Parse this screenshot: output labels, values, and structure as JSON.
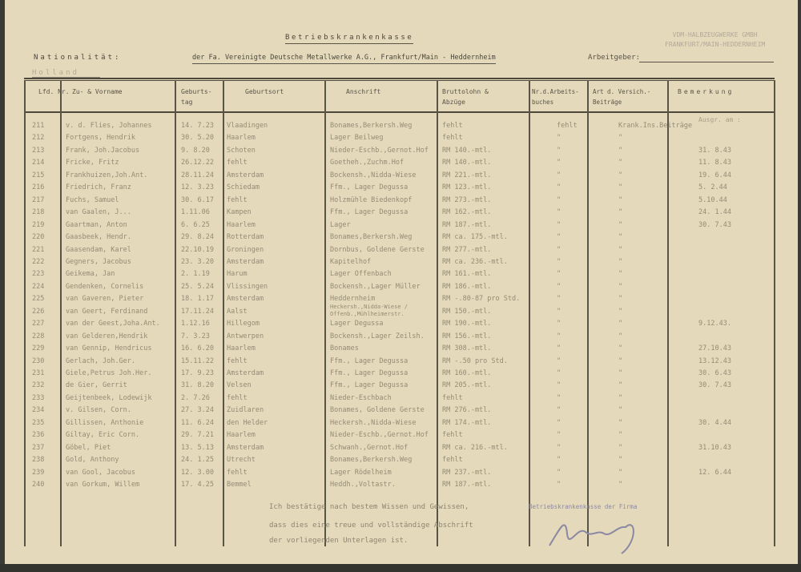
{
  "header": {
    "title": "Betriebskrankenkasse",
    "firm_line": "der Fa. Vereinigte Deutsche Metallwerke A.G., Frankfurt/Main - Heddernheim",
    "nationality_label": "Nationalität:",
    "nationality_value": "Holland",
    "employer_label": "Arbeitgeber:",
    "stamp_line1": "VDM-HALBZEUGWERKE GMBH",
    "stamp_line2": "FRANKFURT/MAIN-HEDDERNHEIM"
  },
  "columns": [
    "Lfd. Nr.",
    "Zu- & Vorname",
    "Geburts-tag",
    "Geburtsort",
    "Anschrift",
    "Bruttolohn & Abzüge",
    "Nr.d.Arbeits-buches",
    "Art d. Versich.-Beiträge",
    "Bemerkung"
  ],
  "remark_header": "Ausgr. am :",
  "rows": [
    [
      "211",
      "v. d. Flies, Johannes",
      "14. 7.23",
      "Vlaadingen",
      "Bonames,Berkersh.Weg",
      "fehlt",
      "fehlt",
      "Krank.Ins.Beiträge",
      ""
    ],
    [
      "212",
      "Fortgens, Hendrik",
      "30. 5.20",
      "Haarlem",
      "Lager Beilweg",
      "fehlt",
      "\"",
      "\"",
      ""
    ],
    [
      "213",
      "Frank, Joh.Jacobus",
      "9. 8.20",
      "Schoten",
      "Nieder-Eschb.,Gernot.Hof",
      "RM 140.-mtl.",
      "\"",
      "\"",
      "31. 8.43"
    ],
    [
      "214",
      "Fricke, Fritz",
      "26.12.22",
      "fehlt",
      "Goetheh.,Zuchm.Hof",
      "RM 140.-mtl.",
      "\"",
      "\"",
      "11. 8.43"
    ],
    [
      "215",
      "Frankhuizen,Joh.Ant.",
      "28.11.24",
      "Amsterdam",
      "Bockensh.,Nidda-Wiese",
      "RM 221.-mtl.",
      "\"",
      "\"",
      "19. 6.44"
    ],
    [
      "216",
      "Friedrich, Franz",
      "12. 3.23",
      "Schiedam",
      "Ffm., Lager Degussa",
      "RM 123.-mtl.",
      "\"",
      "\"",
      "5. 2.44"
    ],
    [
      "217",
      "Fuchs, Samuel",
      "30. 6.17",
      "fehlt",
      "Holzmühle Biedenkopf",
      "RM 273.-mtl.",
      "\"",
      "\"",
      "5.10.44"
    ],
    [
      "218",
      "van Gaalen, J...",
      "1.11.06",
      "Kampen",
      "Ffm., Lager Degussa",
      "RM 162.-mtl.",
      "\"",
      "\"",
      "24. 1.44"
    ],
    [
      "219",
      "Gaartman, Anton",
      "6. 6.25",
      "Haarlem",
      "Lager",
      "RM 187.-mtl.",
      "\"",
      "\"",
      "30. 7.43"
    ],
    [
      "220",
      "Gaasbeek, Hendr.",
      "29. 8.24",
      "Rotterdam",
      "Bonames,Berkersh.Weg",
      "RM ca. 175.-mtl.",
      "\"",
      "\"",
      ""
    ],
    [
      "221",
      "Gaasendam, Karel",
      "22.10.19",
      "Groningen",
      "Dornbus, Goldene Gerste",
      "RM 277.-mtl.",
      "\"",
      "\"",
      ""
    ],
    [
      "222",
      "Gegners, Jacobus",
      "23. 3.20",
      "Amsterdam",
      "Kapitelhof",
      "RM ca. 236.-mtl.",
      "\"",
      "\"",
      ""
    ],
    [
      "223",
      "Geikema, Jan",
      "2. 1.19",
      "Harum",
      "Lager Offenbach",
      "RM 161.-mtl.",
      "\"",
      "\"",
      ""
    ],
    [
      "224",
      "Gendenken, Cornelis",
      "25. 5.24",
      "Vlissingen",
      "Bockensh.,Lager Müller",
      "RM 186.-mtl.",
      "\"",
      "\"",
      ""
    ],
    [
      "225",
      "van Gaveren, Pieter",
      "18. 1.17",
      "Amsterdam",
      "Heddernheim",
      "RM -.80-87 pro Std.",
      "\"",
      "\"",
      ""
    ],
    [
      "226",
      "van Geert, Ferdinand",
      "17.11.24",
      "Aalst",
      "Heckersh.,Nidda-Wiese / Offenb.,Mühlheimerstr.",
      "RM 150.-mtl.",
      "\"",
      "\"",
      ""
    ],
    [
      "227",
      "van der Geest,Joha.Ant.",
      "1.12.16",
      "Hillegom",
      "Lager Degussa",
      "RM 190.-mtl.",
      "\"",
      "\"",
      "9.12.43."
    ],
    [
      "228",
      "van Gelderen,Hendrik",
      "7. 3.23",
      "Antwerpen",
      "Bockensh.,Lager Zeilsh.",
      "RM 156.-mtl.",
      "\"",
      "\"",
      ""
    ],
    [
      "229",
      "van Gennip, Hendricus",
      "16. 6.20",
      "Haarlem",
      "Bonames",
      "RM 308.-mtl.",
      "\"",
      "\"",
      "27.10.43"
    ],
    [
      "230",
      "Gerlach, Joh.Ger.",
      "15.11.22",
      "fehlt",
      "Ffm., Lager Degussa",
      "RM -.50 pro Std.",
      "\"",
      "\"",
      "13.12.43"
    ],
    [
      "231",
      "Giele,Petrus Joh.Her.",
      "17. 9.23",
      "Amsterdam",
      "Ffm., Lager Degussa",
      "RM 160.-mtl.",
      "\"",
      "\"",
      "30. 6.43"
    ],
    [
      "232",
      "de Gier, Gerrit",
      "31. 8.20",
      "Velsen",
      "Ffm., Lager Degussa",
      "RM 205.-mtl.",
      "\"",
      "\"",
      "30. 7.43"
    ],
    [
      "233",
      "Geijtenbeek, Lodewijk",
      "2. 7.26",
      "fehlt",
      "Nieder-Eschbach",
      "fehlt",
      "\"",
      "\"",
      ""
    ],
    [
      "234",
      "v. Gilsen, Corn.",
      "27. 3.24",
      "Zuidlaren",
      "Bonames, Goldene Gerste",
      "RM 276.-mtl.",
      "\"",
      "\"",
      ""
    ],
    [
      "235",
      "Gillissen, Anthonie",
      "11. 6.24",
      "den Helder",
      "Heckersh.,Nidda-Wiese",
      "RM 174.-mtl.",
      "\"",
      "\"",
      "30. 4.44"
    ],
    [
      "236",
      "Giltay, Eric Corn.",
      "29. 7.21",
      "Haarlem",
      "Nieder-Eschb.,Gernot.Hof",
      "fehlt",
      "\"",
      "\"",
      ""
    ],
    [
      "237",
      "Göbel, Piet",
      "13. 5.13",
      "Amsterdam",
      "Schwanh.,Gernot.Hof",
      "RM ca. 216.-mtl.",
      "\"",
      "\"",
      "31.10.43"
    ],
    [
      "238",
      "Gold, Anthony",
      "24. 1.25",
      "Utrecht",
      "Bonames,Berkersh.Weg",
      "fehlt",
      "\"",
      "\"",
      ""
    ],
    [
      "239",
      "van Gool, Jacobus",
      "12. 3.00",
      "fehlt",
      "Lager Rödelheim",
      "RM 237.-mtl.",
      "\"",
      "\"",
      "12. 6.44"
    ],
    [
      "240",
      "van Gorkum, Willem",
      "17. 4.25",
      "Bemmel",
      "Heddh.,Voltastr.",
      "RM 187.-mtl.",
      "\"",
      "\"",
      ""
    ]
  ],
  "footer": {
    "line1": "Ich bestätige nach bestem Wissen und Gewissen,",
    "line2": "dass dies eine treue und vollständige Abschrift",
    "line3": "der vorliegenden Unterlagen ist.",
    "stamp": "Betriebskrankenkasse der Firma"
  }
}
